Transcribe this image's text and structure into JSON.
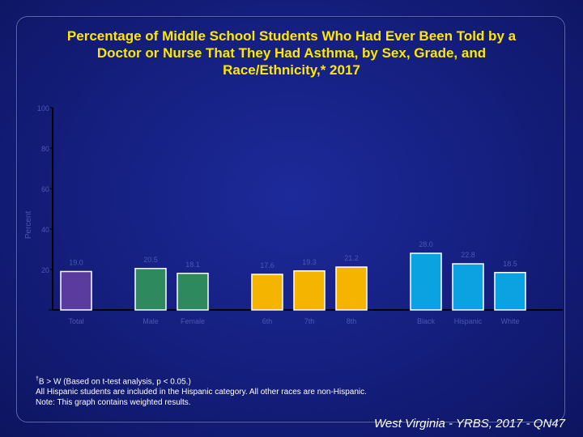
{
  "title_lines": [
    "Percentage of Middle School Students Who Had Ever Been Told by a",
    "Doctor or Nurse That They Had Asthma, by Sex, Grade, and",
    "Race/Ethnicity,* 2017"
  ],
  "chart_data": {
    "type": "bar",
    "ylabel": "Percent",
    "ylim": [
      0,
      100
    ],
    "yticks": [
      0,
      20,
      40,
      60,
      80,
      100
    ],
    "grid": false,
    "categories": [
      "Total",
      "Male",
      "Female",
      "6th",
      "7th",
      "8th",
      "Black",
      "Hispanic",
      "White"
    ],
    "groups": [
      [
        "Total"
      ],
      [
        "Male",
        "Female"
      ],
      [
        "6th",
        "7th",
        "8th"
      ],
      [
        "Black",
        "Hispanic",
        "White"
      ]
    ],
    "values": [
      19.0,
      20.5,
      18.1,
      17.6,
      19.3,
      21.2,
      28.0,
      22.8,
      18.5
    ],
    "value_labels": [
      "19.0",
      "20.5",
      "18.1",
      "17.6",
      "19.3",
      "21.2",
      "28.0",
      "22.8",
      "18.5"
    ],
    "colors": [
      "#5a3c9e",
      "#2e8a5e",
      "#2e8a5e",
      "#f4b400",
      "#f4b400",
      "#f4b400",
      "#0aa2e0",
      "#0aa2e0",
      "#0aa2e0"
    ]
  },
  "notes": {
    "note1_sup": "†",
    "note1_text": "B > W (Based on t-test analysis, p < 0.05.)",
    "note2": "All Hispanic students are included in the Hispanic category.  All other races are non-Hispanic.",
    "note3": "Note: This graph contains weighted results."
  },
  "footer": "West Virginia - YRBS, 2017 - QN47"
}
